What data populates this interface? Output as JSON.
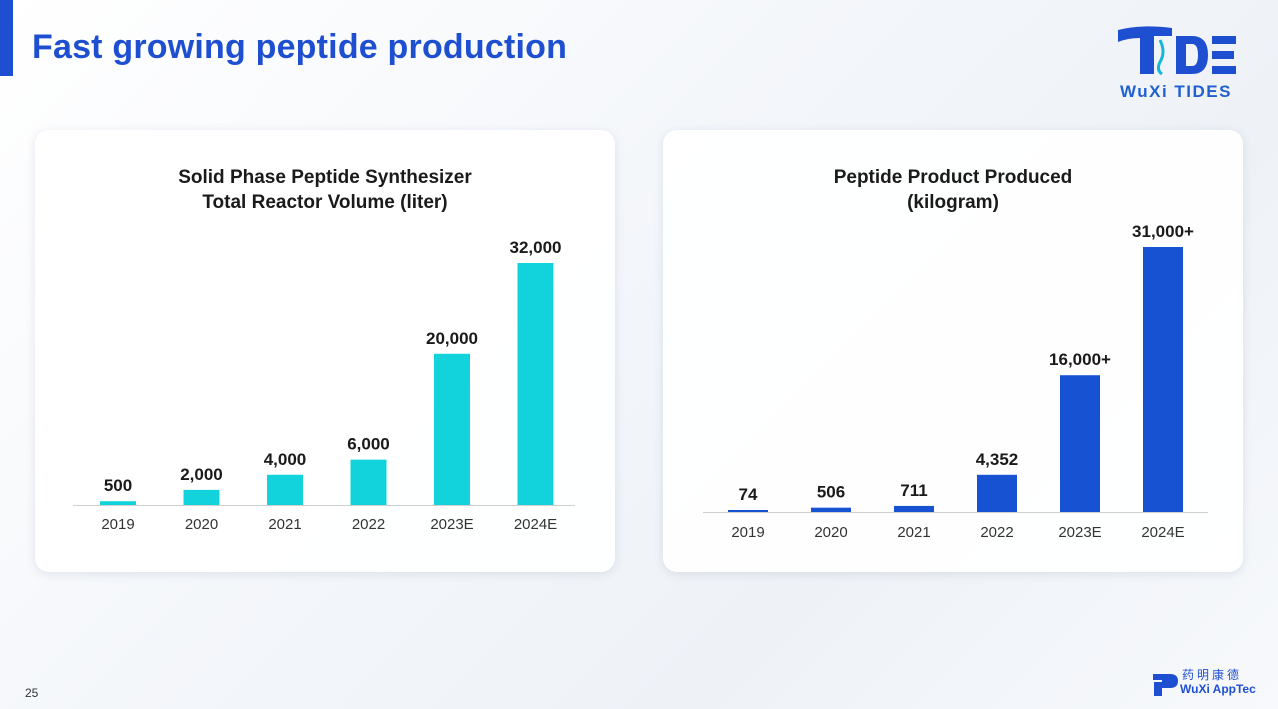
{
  "header": {
    "title": "Fast growing peptide production",
    "logo_text": "WuXi TIDES"
  },
  "footer": {
    "page_number": "25",
    "logo_cn": "药明康德",
    "logo_en": "WuXi AppTec"
  },
  "colors": {
    "accent": "#1f4fd1",
    "cyan": "#12d3dc",
    "blue": "#1652d1"
  },
  "chart_data": [
    {
      "type": "bar",
      "title": [
        "Solid Phase Peptide Synthesizer",
        "Total Reactor Volume (liter)"
      ],
      "categories": [
        "2019",
        "2020",
        "2021",
        "2022",
        "2023E",
        "2024E"
      ],
      "values": [
        500,
        2000,
        4000,
        6000,
        20000,
        32000
      ],
      "value_labels": [
        "500",
        "2,000",
        "4,000",
        "6,000",
        "20,000",
        "32,000"
      ],
      "xlabel": "",
      "ylabel": "",
      "ylim": [
        0,
        32000
      ],
      "color": "#12d3dc"
    },
    {
      "type": "bar",
      "title": [
        "Peptide Product Produced",
        "(kilogram)"
      ],
      "categories": [
        "2019",
        "2020",
        "2021",
        "2022",
        "2023E",
        "2024E"
      ],
      "values": [
        74,
        506,
        711,
        4352,
        16000,
        31000
      ],
      "value_labels": [
        "74",
        "506",
        "711",
        "4,352",
        "16,000+",
        "31,000+"
      ],
      "xlabel": "",
      "ylabel": "",
      "ylim": [
        0,
        31000
      ],
      "color": "#1652d1"
    }
  ]
}
